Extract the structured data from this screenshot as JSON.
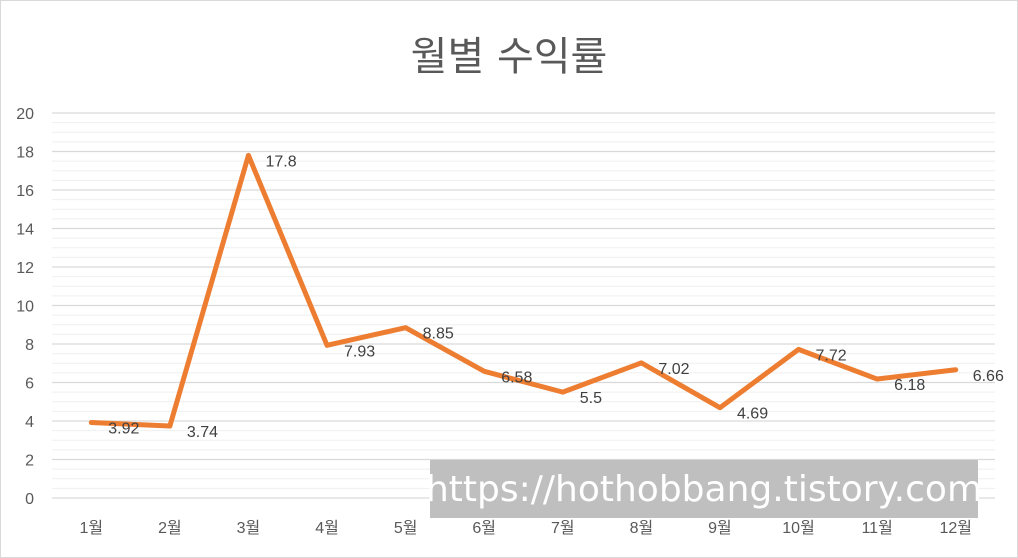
{
  "chart_data": {
    "type": "line",
    "title": "월별 수익률",
    "categories": [
      "1월",
      "2월",
      "3월",
      "4월",
      "5월",
      "6월",
      "7월",
      "8월",
      "9월",
      "10월",
      "11월",
      "12월"
    ],
    "series": [
      {
        "values": [
          3.92,
          3.74,
          17.8,
          7.93,
          8.85,
          6.58,
          5.5,
          7.02,
          4.69,
          7.72,
          6.18,
          6.66
        ]
      }
    ],
    "data_labels": [
      "3.92",
      "3.74",
      "17.8",
      "7.93",
      "8.85",
      "6.58",
      "5.5",
      "7.02",
      "4.69",
      "7.72",
      "6.18",
      "6.66"
    ],
    "y_ticks": [
      "0",
      "2",
      "4",
      "6",
      "8",
      "10",
      "12",
      "14",
      "16",
      "18",
      "20"
    ],
    "ylim": [
      0,
      20
    ],
    "grid": true,
    "line_color": "#ED7D31",
    "grid_color": "#d9d9d9"
  },
  "watermark": {
    "text": "https://hothobbang.tistory.com",
    "background": "#bfbfbf"
  }
}
